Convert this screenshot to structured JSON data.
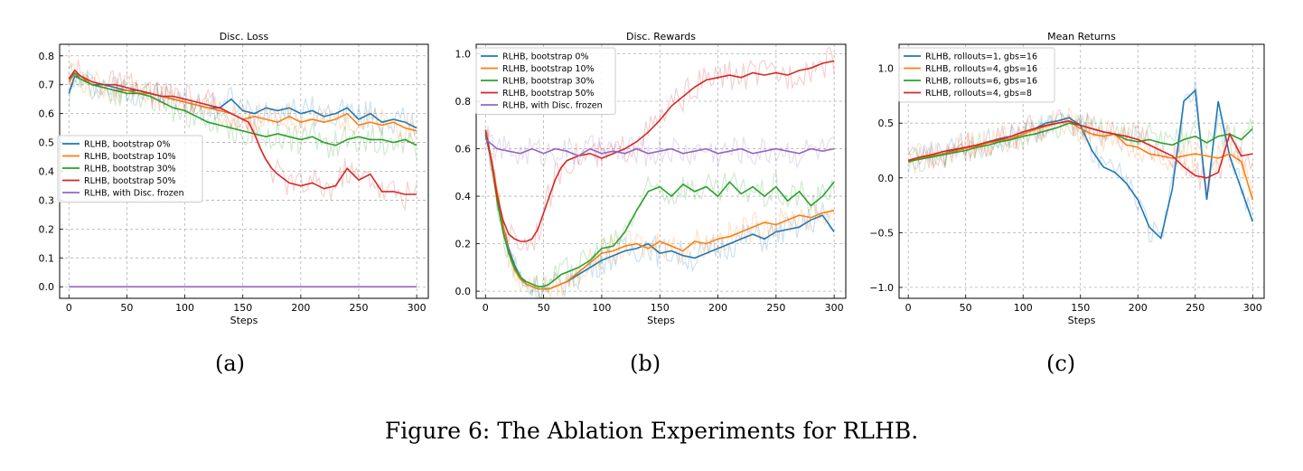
{
  "caption": "Figure 6: The Ablation Experiments for RLHB.",
  "panel_labels": [
    "(a)",
    "(b)",
    "(c)"
  ],
  "colors": {
    "blue": "#1f77b4",
    "orange": "#ff7f0e",
    "green": "#2ca02c",
    "red": "#d62728",
    "purple": "#9467bd"
  },
  "chart_data": [
    {
      "type": "line",
      "title": "Disc. Loss",
      "xlabel": "Steps",
      "ylabel": "",
      "xlim": [
        -8,
        310
      ],
      "ylim": [
        -0.04,
        0.84
      ],
      "xticks": [
        0,
        50,
        100,
        150,
        200,
        250,
        300
      ],
      "yticks": [
        0.0,
        0.1,
        0.2,
        0.3,
        0.4,
        0.5,
        0.6,
        0.7,
        0.8
      ],
      "ytick_labels": [
        "0.0",
        "0.1",
        "0.2",
        "0.3",
        "0.4",
        "0.5",
        "0.6",
        "0.7",
        "0.8"
      ],
      "grid": true,
      "legend_position": "center-left",
      "series": [
        {
          "name": "RLHB, bootstrap 0%",
          "color": "#1f77b4",
          "x": [
            0,
            5,
            10,
            20,
            30,
            40,
            50,
            60,
            70,
            80,
            90,
            100,
            110,
            120,
            130,
            140,
            150,
            160,
            170,
            180,
            190,
            200,
            210,
            220,
            230,
            240,
            250,
            260,
            270,
            280,
            290,
            300
          ],
          "y": [
            0.67,
            0.73,
            0.72,
            0.7,
            0.7,
            0.69,
            0.68,
            0.68,
            0.67,
            0.66,
            0.65,
            0.64,
            0.63,
            0.62,
            0.62,
            0.65,
            0.61,
            0.6,
            0.62,
            0.61,
            0.62,
            0.6,
            0.61,
            0.59,
            0.6,
            0.62,
            0.58,
            0.6,
            0.57,
            0.58,
            0.57,
            0.55
          ]
        },
        {
          "name": "RLHB, bootstrap 10%",
          "color": "#ff7f0e",
          "x": [
            0,
            5,
            10,
            20,
            30,
            40,
            50,
            60,
            70,
            80,
            90,
            100,
            110,
            120,
            130,
            140,
            150,
            160,
            170,
            180,
            190,
            200,
            210,
            220,
            230,
            240,
            250,
            260,
            270,
            280,
            290,
            300
          ],
          "y": [
            0.71,
            0.74,
            0.73,
            0.7,
            0.69,
            0.68,
            0.68,
            0.67,
            0.67,
            0.66,
            0.65,
            0.64,
            0.63,
            0.62,
            0.61,
            0.6,
            0.58,
            0.59,
            0.58,
            0.57,
            0.59,
            0.57,
            0.58,
            0.57,
            0.58,
            0.6,
            0.56,
            0.57,
            0.56,
            0.57,
            0.55,
            0.54
          ]
        },
        {
          "name": "RLHB, bootstrap 30%",
          "color": "#2ca02c",
          "x": [
            0,
            5,
            10,
            20,
            30,
            40,
            50,
            60,
            70,
            80,
            90,
            100,
            110,
            120,
            130,
            140,
            150,
            160,
            170,
            180,
            190,
            200,
            210,
            220,
            230,
            240,
            250,
            260,
            270,
            280,
            290,
            300
          ],
          "y": [
            0.72,
            0.74,
            0.72,
            0.7,
            0.69,
            0.68,
            0.67,
            0.67,
            0.66,
            0.64,
            0.62,
            0.61,
            0.59,
            0.57,
            0.56,
            0.55,
            0.54,
            0.53,
            0.52,
            0.53,
            0.52,
            0.51,
            0.52,
            0.5,
            0.49,
            0.51,
            0.52,
            0.51,
            0.51,
            0.5,
            0.51,
            0.49
          ]
        },
        {
          "name": "RLHB, bootstrap 50%",
          "color": "#d62728",
          "x": [
            0,
            5,
            10,
            20,
            30,
            40,
            50,
            60,
            70,
            80,
            90,
            100,
            110,
            120,
            130,
            140,
            150,
            155,
            160,
            165,
            170,
            175,
            180,
            190,
            200,
            210,
            220,
            230,
            240,
            250,
            260,
            270,
            280,
            290,
            300
          ],
          "y": [
            0.72,
            0.75,
            0.73,
            0.71,
            0.7,
            0.7,
            0.69,
            0.68,
            0.67,
            0.66,
            0.66,
            0.65,
            0.64,
            0.63,
            0.62,
            0.6,
            0.58,
            0.57,
            0.53,
            0.48,
            0.44,
            0.41,
            0.39,
            0.36,
            0.35,
            0.36,
            0.34,
            0.35,
            0.41,
            0.37,
            0.39,
            0.33,
            0.33,
            0.32,
            0.32
          ]
        },
        {
          "name": "RLHB, with Disc. frozen",
          "color": "#9467bd",
          "x": [
            0,
            300
          ],
          "y": [
            0.0,
            0.0
          ]
        }
      ]
    },
    {
      "type": "line",
      "title": "Disc. Rewards",
      "xlabel": "Steps",
      "ylabel": "",
      "xlim": [
        -8,
        310
      ],
      "ylim": [
        -0.03,
        1.04
      ],
      "xticks": [
        0,
        50,
        100,
        150,
        200,
        250,
        300
      ],
      "yticks": [
        0.0,
        0.2,
        0.4,
        0.6,
        0.8,
        1.0
      ],
      "ytick_labels": [
        "0.0",
        "0.2",
        "0.4",
        "0.6",
        "0.8",
        "1.0"
      ],
      "grid": true,
      "legend_position": "top-left",
      "series": [
        {
          "name": "RLHB, bootstrap 0%",
          "color": "#1f77b4",
          "x": [
            0,
            5,
            10,
            15,
            20,
            25,
            30,
            35,
            40,
            45,
            50,
            55,
            60,
            65,
            70,
            80,
            90,
            100,
            110,
            120,
            130,
            140,
            150,
            160,
            170,
            180,
            190,
            200,
            210,
            220,
            230,
            240,
            250,
            260,
            270,
            280,
            290,
            300
          ],
          "y": [
            0.66,
            0.55,
            0.4,
            0.28,
            0.18,
            0.11,
            0.06,
            0.03,
            0.02,
            0.01,
            0.01,
            0.01,
            0.02,
            0.03,
            0.04,
            0.07,
            0.1,
            0.13,
            0.15,
            0.17,
            0.18,
            0.2,
            0.16,
            0.17,
            0.15,
            0.14,
            0.16,
            0.18,
            0.2,
            0.22,
            0.24,
            0.22,
            0.25,
            0.26,
            0.27,
            0.3,
            0.32,
            0.25
          ]
        },
        {
          "name": "RLHB, bootstrap 10%",
          "color": "#ff7f0e",
          "x": [
            0,
            5,
            10,
            15,
            20,
            25,
            30,
            35,
            40,
            45,
            50,
            55,
            60,
            65,
            70,
            80,
            90,
            100,
            110,
            120,
            130,
            140,
            150,
            160,
            170,
            180,
            190,
            200,
            210,
            220,
            230,
            240,
            250,
            260,
            270,
            280,
            290,
            300
          ],
          "y": [
            0.68,
            0.56,
            0.42,
            0.28,
            0.16,
            0.09,
            0.05,
            0.03,
            0.02,
            0.01,
            0.01,
            0.01,
            0.02,
            0.03,
            0.04,
            0.08,
            0.12,
            0.16,
            0.17,
            0.19,
            0.2,
            0.18,
            0.21,
            0.19,
            0.17,
            0.21,
            0.2,
            0.22,
            0.23,
            0.25,
            0.27,
            0.29,
            0.28,
            0.3,
            0.32,
            0.31,
            0.33,
            0.34
          ]
        },
        {
          "name": "RLHB, bootstrap 30%",
          "color": "#2ca02c",
          "x": [
            0,
            5,
            10,
            15,
            20,
            25,
            30,
            35,
            40,
            45,
            50,
            55,
            60,
            65,
            70,
            80,
            90,
            100,
            110,
            120,
            130,
            140,
            150,
            160,
            170,
            180,
            190,
            200,
            210,
            220,
            230,
            240,
            250,
            260,
            270,
            280,
            290,
            300
          ],
          "y": [
            0.67,
            0.55,
            0.38,
            0.25,
            0.16,
            0.1,
            0.06,
            0.04,
            0.03,
            0.02,
            0.02,
            0.03,
            0.05,
            0.07,
            0.08,
            0.1,
            0.13,
            0.18,
            0.19,
            0.25,
            0.34,
            0.42,
            0.44,
            0.4,
            0.45,
            0.42,
            0.44,
            0.4,
            0.46,
            0.41,
            0.44,
            0.4,
            0.44,
            0.38,
            0.42,
            0.36,
            0.4,
            0.46
          ]
        },
        {
          "name": "RLHB, bootstrap 50%",
          "color": "#d62728",
          "x": [
            0,
            5,
            10,
            15,
            20,
            25,
            30,
            35,
            40,
            45,
            50,
            55,
            60,
            65,
            70,
            80,
            90,
            100,
            110,
            120,
            130,
            140,
            150,
            160,
            170,
            180,
            190,
            200,
            210,
            220,
            230,
            240,
            250,
            260,
            270,
            280,
            290,
            300
          ],
          "y": [
            0.68,
            0.55,
            0.4,
            0.3,
            0.24,
            0.22,
            0.21,
            0.21,
            0.22,
            0.26,
            0.33,
            0.4,
            0.47,
            0.52,
            0.55,
            0.57,
            0.58,
            0.56,
            0.58,
            0.6,
            0.63,
            0.67,
            0.72,
            0.78,
            0.82,
            0.86,
            0.89,
            0.9,
            0.91,
            0.9,
            0.92,
            0.91,
            0.92,
            0.91,
            0.93,
            0.94,
            0.96,
            0.97
          ]
        },
        {
          "name": "RLHB, with Disc. frozen",
          "color": "#9467bd",
          "x": [
            0,
            10,
            20,
            30,
            40,
            50,
            60,
            70,
            80,
            90,
            100,
            110,
            120,
            130,
            140,
            150,
            160,
            170,
            180,
            190,
            200,
            210,
            220,
            230,
            240,
            250,
            260,
            270,
            280,
            290,
            300
          ],
          "y": [
            0.64,
            0.6,
            0.59,
            0.58,
            0.6,
            0.58,
            0.6,
            0.59,
            0.57,
            0.6,
            0.58,
            0.59,
            0.58,
            0.6,
            0.58,
            0.59,
            0.6,
            0.58,
            0.59,
            0.6,
            0.58,
            0.59,
            0.6,
            0.58,
            0.59,
            0.6,
            0.59,
            0.58,
            0.6,
            0.59,
            0.6
          ]
        }
      ]
    },
    {
      "type": "line",
      "title": "Mean Returns",
      "xlabel": "Steps",
      "ylabel": "",
      "xlim": [
        -8,
        310
      ],
      "ylim": [
        -1.1,
        1.22
      ],
      "xticks": [
        0,
        50,
        100,
        150,
        200,
        250,
        300
      ],
      "yticks": [
        -1.0,
        -0.5,
        0.0,
        0.5,
        1.0
      ],
      "ytick_labels": [
        "−1.0",
        "−0.5",
        "0.0",
        "0.5",
        "1.0"
      ],
      "grid": true,
      "legend_position": "top-left",
      "series": [
        {
          "name": "RLHB, rollouts=1, gbs=16",
          "color": "#1f77b4",
          "x": [
            0,
            10,
            20,
            30,
            40,
            50,
            60,
            70,
            80,
            90,
            100,
            110,
            120,
            130,
            140,
            150,
            160,
            170,
            180,
            190,
            200,
            210,
            220,
            230,
            240,
            250,
            260,
            270,
            280,
            290,
            300
          ],
          "y": [
            0.15,
            0.18,
            0.2,
            0.22,
            0.25,
            0.28,
            0.3,
            0.33,
            0.36,
            0.38,
            0.42,
            0.45,
            0.5,
            0.52,
            0.55,
            0.48,
            0.25,
            0.1,
            0.05,
            -0.05,
            -0.2,
            -0.45,
            -0.55,
            -0.1,
            0.7,
            0.8,
            -0.2,
            0.7,
            0.2,
            -0.1,
            -0.4
          ]
        },
        {
          "name": "RLHB, rollouts=4, gbs=16",
          "color": "#ff7f0e",
          "x": [
            0,
            10,
            20,
            30,
            40,
            50,
            60,
            70,
            80,
            90,
            100,
            110,
            120,
            130,
            140,
            150,
            160,
            170,
            180,
            190,
            200,
            210,
            220,
            230,
            240,
            250,
            260,
            270,
            280,
            290,
            300
          ],
          "y": [
            0.14,
            0.18,
            0.2,
            0.22,
            0.24,
            0.27,
            0.29,
            0.32,
            0.34,
            0.36,
            0.4,
            0.44,
            0.47,
            0.5,
            0.52,
            0.45,
            0.4,
            0.38,
            0.4,
            0.3,
            0.28,
            0.22,
            0.2,
            0.18,
            0.2,
            0.22,
            0.2,
            0.18,
            0.22,
            0.15,
            -0.2
          ]
        },
        {
          "name": "RLHB, rollouts=6, gbs=16",
          "color": "#2ca02c",
          "x": [
            0,
            10,
            20,
            30,
            40,
            50,
            60,
            70,
            80,
            90,
            100,
            110,
            120,
            130,
            140,
            150,
            160,
            170,
            180,
            190,
            200,
            210,
            220,
            230,
            240,
            250,
            260,
            270,
            280,
            290,
            300
          ],
          "y": [
            0.15,
            0.17,
            0.19,
            0.21,
            0.23,
            0.25,
            0.28,
            0.3,
            0.33,
            0.35,
            0.38,
            0.4,
            0.43,
            0.46,
            0.5,
            0.48,
            0.45,
            0.42,
            0.4,
            0.35,
            0.33,
            0.35,
            0.32,
            0.3,
            0.35,
            0.38,
            0.32,
            0.38,
            0.4,
            0.35,
            0.45
          ]
        },
        {
          "name": "RLHB, rollouts=4, gbs=8",
          "color": "#d62728",
          "x": [
            0,
            10,
            20,
            30,
            40,
            50,
            60,
            70,
            80,
            90,
            100,
            110,
            120,
            130,
            140,
            150,
            160,
            170,
            180,
            190,
            200,
            210,
            220,
            230,
            240,
            250,
            260,
            270,
            280,
            290,
            300
          ],
          "y": [
            0.16,
            0.19,
            0.21,
            0.24,
            0.26,
            0.28,
            0.3,
            0.33,
            0.35,
            0.38,
            0.42,
            0.45,
            0.48,
            0.5,
            0.52,
            0.48,
            0.45,
            0.42,
            0.4,
            0.38,
            0.35,
            0.3,
            0.25,
            0.2,
            0.1,
            0.02,
            0.0,
            0.05,
            0.4,
            0.2,
            0.22
          ]
        }
      ]
    }
  ]
}
